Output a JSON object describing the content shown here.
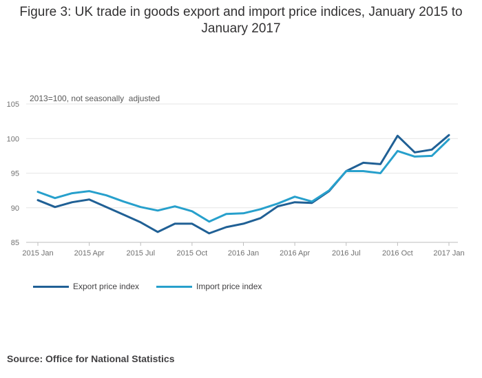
{
  "title": "Figure 3: UK trade in goods export and import price indices, January 2015 to January 2017",
  "source": "Source: Office for National Statistics",
  "chart_data": {
    "type": "line",
    "subtitle": "2013=100, not seasonally  adjusted",
    "ylim": [
      85,
      105
    ],
    "y_ticks": [
      85,
      90,
      95,
      100,
      105
    ],
    "x_tick_labels": [
      "2015 Jan",
      "2015 Apr",
      "2015 Jul",
      "2015 Oct",
      "2016 Jan",
      "2016 Apr",
      "2016 Jul",
      "2016 Oct",
      "2017 Jan"
    ],
    "x_tick_every": 3,
    "grid": true,
    "legend_position": "bottom-left",
    "series": [
      {
        "name": "Export price index",
        "color": "#206095",
        "values": [
          91.1,
          90.1,
          90.8,
          91.2,
          90.1,
          89.0,
          87.9,
          86.5,
          87.7,
          87.7,
          86.3,
          87.2,
          87.7,
          88.5,
          90.2,
          90.8,
          90.7,
          92.4,
          95.3,
          96.5,
          96.3,
          100.4,
          98.0,
          98.4,
          100.5
        ]
      },
      {
        "name": "Import price index",
        "color": "#27a0cc",
        "values": [
          92.3,
          91.4,
          92.1,
          92.4,
          91.8,
          90.9,
          90.1,
          89.6,
          90.2,
          89.5,
          88.0,
          89.1,
          89.2,
          89.8,
          90.6,
          91.6,
          90.9,
          92.5,
          95.3,
          95.3,
          95.0,
          98.2,
          97.4,
          97.5,
          99.9
        ]
      }
    ]
  }
}
